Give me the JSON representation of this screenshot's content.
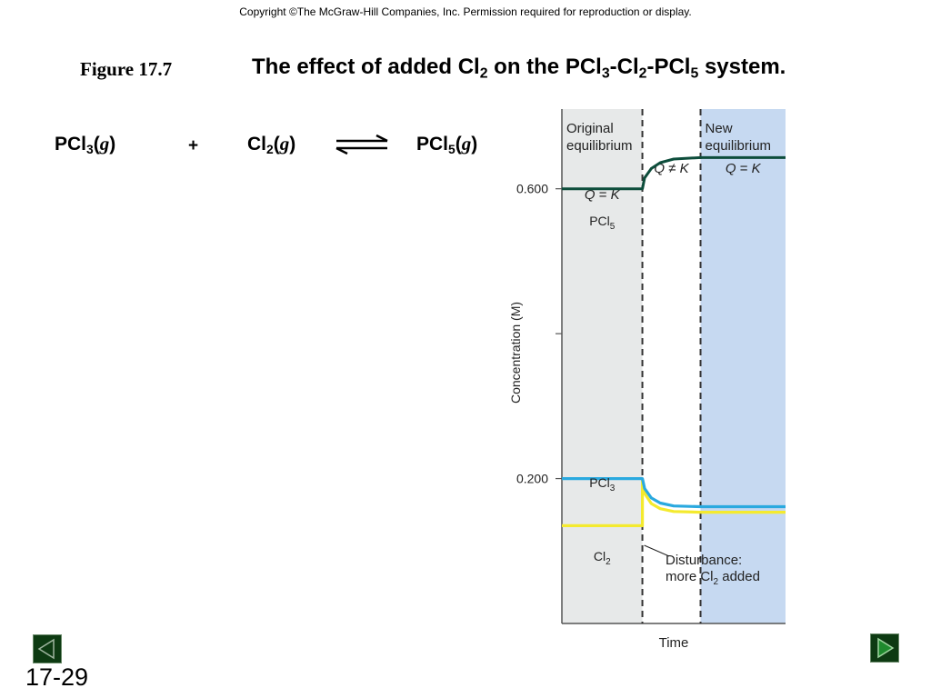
{
  "copyright": "Copyright ©The McGraw-Hill Companies, Inc.  Permission required for reproduction or display.",
  "figure_label": "Figure 17.7",
  "title": {
    "text1": "The effect of added Cl",
    "sub1": "2",
    "text2": " on the PCl",
    "sub2": "3",
    "text3": "-Cl",
    "sub3": "2",
    "text4": "-PCl",
    "sub4": "5",
    "text5": " system."
  },
  "equation": {
    "reactant1": {
      "formula": "PCl",
      "sub": "3",
      "open": "(",
      "state": "g",
      "close": ")"
    },
    "plus": "+",
    "reactant2": {
      "formula": "Cl",
      "sub": "2",
      "open": "(",
      "state": "g",
      "close": ")"
    },
    "product": {
      "formula": "PCl",
      "sub": "5",
      "open": "(",
      "state": "g",
      "close": ")"
    }
  },
  "chart_data": {
    "type": "line",
    "xlabel": "Time",
    "ylabel": "Concentration (M)",
    "yticks": [
      {
        "value": 0.2,
        "label": "0.200"
      },
      {
        "value": 0.4,
        "label": ""
      },
      {
        "value": 0.6,
        "label": "0.600"
      }
    ],
    "ylim": [
      0.0,
      0.71
    ],
    "xlim": [
      0,
      10
    ],
    "disturbance_x": 3.6,
    "new_eq_x": 6.2,
    "regions": [
      {
        "name": "original",
        "x0": 0,
        "x1": 3.6,
        "color": "#e7e9e9",
        "lines": [
          "Original",
          "equilibrium"
        ]
      },
      {
        "name": "new",
        "x0": 6.2,
        "x1": 10,
        "color": "#c6d9f1",
        "lines": [
          "New",
          "equilibrium"
        ]
      }
    ],
    "region_labels": {
      "original_q": "Q = K",
      "transition_q": "Q ≠ K",
      "new_q": "Q = K"
    },
    "series": [
      {
        "name": "PCl5",
        "sub": "5",
        "base": "PCl",
        "color": "#0d4d3b",
        "x": [
          0,
          3.6,
          3.7,
          4.0,
          4.4,
          5.0,
          6.2,
          10
        ],
        "y": [
          0.6,
          0.6,
          0.615,
          0.628,
          0.636,
          0.641,
          0.643,
          0.643
        ]
      },
      {
        "name": "PCl3",
        "sub": "3",
        "base": "PCl",
        "color": "#2aa9df",
        "x": [
          0,
          3.6,
          3.7,
          4.0,
          4.4,
          5.0,
          6.2,
          10
        ],
        "y": [
          0.2,
          0.2,
          0.185,
          0.172,
          0.165,
          0.161,
          0.16,
          0.16
        ]
      },
      {
        "name": "Cl2",
        "sub": "2",
        "base": "Cl",
        "color": "#f4ea2e",
        "x": [
          0,
          3.6,
          3.6,
          3.7,
          4.0,
          4.4,
          5.0,
          6.2,
          10
        ],
        "y": [
          0.135,
          0.135,
          0.2,
          0.182,
          0.168,
          0.161,
          0.157,
          0.156,
          0.156
        ]
      }
    ],
    "annotation": {
      "line1": "Disturbance:",
      "line2a": "more Cl",
      "line2sub": "2",
      "line2b": " added"
    }
  },
  "navigation": {
    "prev": "previous-slide",
    "next": "next-slide"
  },
  "slide_number": "17-29"
}
